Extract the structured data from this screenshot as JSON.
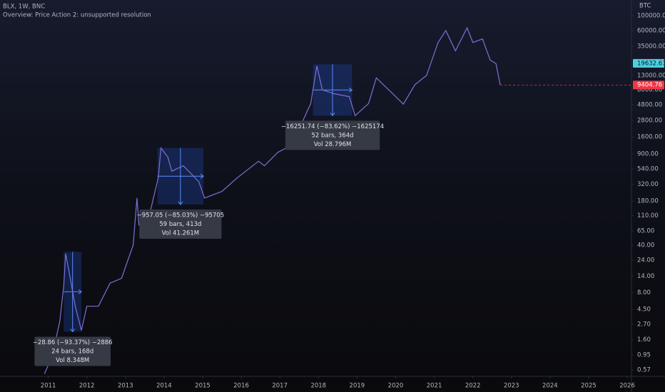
{
  "chart_data": {
    "type": "line",
    "title": "BLX, 1W, BNC",
    "subtitle": "Overview: Price Action 2: unsupported resolution",
    "y_axis_label": "BTC",
    "log_scale": true,
    "x": [
      2010.9,
      2011.1,
      2011.3,
      2011.4,
      2011.45,
      2011.55,
      2011.7,
      2011.86,
      2012.0,
      2012.3,
      2012.6,
      2012.9,
      2013.2,
      2013.3,
      2013.35,
      2013.6,
      2013.85,
      2013.92,
      2014.1,
      2014.2,
      2014.5,
      2014.9,
      2015.05,
      2015.5,
      2015.9,
      2016.45,
      2016.6,
      2016.95,
      2017.3,
      2017.6,
      2017.8,
      2017.96,
      2018.1,
      2018.4,
      2018.8,
      2018.95,
      2019.3,
      2019.5,
      2019.9,
      2020.2,
      2020.5,
      2020.8,
      2021.1,
      2021.3,
      2021.55,
      2021.85,
      2022.0,
      2022.25,
      2022.45,
      2022.6,
      2022.71
    ],
    "series": [
      {
        "color": "#7e6fd8",
        "values": [
          0.5,
          0.9,
          3,
          10,
          30,
          15,
          5,
          2.2,
          5,
          5,
          11,
          13,
          40,
          200,
          80,
          100,
          400,
          1100,
          800,
          500,
          600,
          350,
          200,
          250,
          400,
          700,
          600,
          950,
          1200,
          2800,
          5000,
          18000,
          8000,
          7000,
          6300,
          3300,
          5000,
          12000,
          7200,
          4900,
          9500,
          13000,
          40000,
          60000,
          30000,
          66000,
          40000,
          45000,
          22000,
          19500,
          9404.76
        ]
      }
    ],
    "xlim": [
      2009.75,
      2026.11
    ],
    "xticks": [
      2011,
      2012,
      2013,
      2014,
      2015,
      2016,
      2017,
      2018,
      2019,
      2020,
      2021,
      2022,
      2023,
      2024,
      2025,
      2026
    ],
    "ylim": [
      0.46,
      170000
    ],
    "yticks": [
      {
        "value": 100000,
        "label": "100000.00"
      },
      {
        "value": 60000,
        "label": "60000.00"
      },
      {
        "value": 35000,
        "label": "35000.00"
      },
      {
        "value": 13000,
        "label": "13000.00"
      },
      {
        "value": 8000,
        "label": "8000.00"
      },
      {
        "value": 4800,
        "label": "4800.00"
      },
      {
        "value": 2800,
        "label": "2800.00"
      },
      {
        "value": 1600,
        "label": "1600.00"
      },
      {
        "value": 900,
        "label": "900.00"
      },
      {
        "value": 540,
        "label": "540.00"
      },
      {
        "value": 320,
        "label": "320.00"
      },
      {
        "value": 180,
        "label": "180.00"
      },
      {
        "value": 110,
        "label": "110.00"
      },
      {
        "value": 65,
        "label": "65.00"
      },
      {
        "value": 40,
        "label": "40.00"
      },
      {
        "value": 24,
        "label": "24.00"
      },
      {
        "value": 14,
        "label": "14.00"
      },
      {
        "value": 8,
        "label": "8.00"
      },
      {
        "value": 4.5,
        "label": "4.50"
      },
      {
        "value": 2.7,
        "label": "2.70"
      },
      {
        "value": 1.6,
        "label": "1.60"
      },
      {
        "value": 0.95,
        "label": "0.95"
      },
      {
        "value": 0.57,
        "label": "0.57"
      }
    ],
    "price_labels": [
      {
        "value": 19632.63,
        "color": "#4dd0e1"
      },
      {
        "value": 9404.76,
        "color": "#f23645"
      }
    ],
    "measures": [
      {
        "x": [
          2011.4,
          2011.86
        ],
        "y": [
          32,
          2.1
        ],
        "lines": [
          "−28.86 (−93.37%) −2886",
          "24 bars, 168d",
          "Vol 8.348M"
        ]
      },
      {
        "x": [
          2013.83,
          2015.02
        ],
        "y": [
          1100,
          160
        ],
        "lines": [
          "−957.05 (−85.03%) −95705",
          "59 bars, 413d",
          "Vol 41.261M"
        ]
      },
      {
        "x": [
          2017.86,
          2018.87
        ],
        "y": [
          19000,
          3300
        ],
        "lines": [
          "−16251.74 (−83.62%) −1625174",
          "52 bars, 364d",
          "Vol 28.796M"
        ]
      }
    ]
  }
}
